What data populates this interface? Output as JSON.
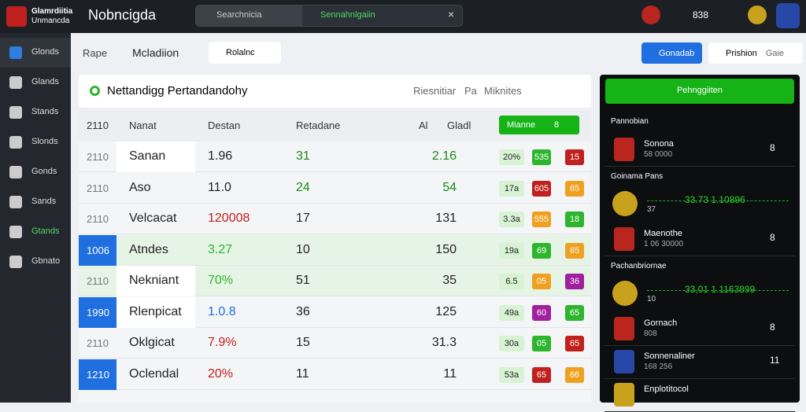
{
  "header": {
    "brand_line1": "Glamrdiitia",
    "brand_line2": "Unmancda",
    "title": "Nobncigda",
    "search": "Searchnicia",
    "search2": "Sennahnlgaiin",
    "count": "838"
  },
  "sidebar": [
    "Glonds",
    "Glands",
    "Stands",
    "Slonds",
    "Gonds",
    "Sands",
    "Gtands",
    "Gbnato"
  ],
  "toolbar": {
    "crumb1": "Rape",
    "crumb2": "Mcladiion",
    "chip": "Rolalnc",
    "button1": "Gonadab",
    "button2": "Prishion",
    "button3": "Gaie"
  },
  "panel": {
    "title": "Nettandigg Pertandandohy",
    "right1": "Riesnitiar",
    "right2": "Pa",
    "right3": "Miknites"
  },
  "table": {
    "headers": [
      "2110",
      "Nanat",
      "Destan",
      "Retadane",
      "Al",
      "Gladl"
    ],
    "action": "Mianne",
    "action_count": "8",
    "rows": [
      [
        "2110",
        "Sanan",
        "1.96",
        "31",
        "2.16",
        "20%",
        "535",
        "15"
      ],
      [
        "2110",
        "Aso",
        "11.0",
        "24",
        "54",
        "17a",
        "605",
        "65"
      ],
      [
        "2110",
        "Velcacat",
        "120008",
        "17",
        "131",
        "3.3a",
        "555",
        "18"
      ],
      [
        "1006",
        "Atndes",
        "3.27",
        "10",
        "150",
        "19a",
        "69",
        "65"
      ],
      [
        "2110",
        "Nekniant",
        "70%",
        "51",
        "35",
        "6.5",
        "05",
        "36"
      ],
      [
        "1990",
        "Rlenpicat",
        "1.0.8",
        "36",
        "125",
        "49a",
        "60",
        "65"
      ],
      [
        "2110",
        "Oklgicat",
        "7.9%",
        "15",
        "31.3",
        "30a",
        "05",
        "65"
      ],
      [
        "1210",
        "Oclendal",
        "20%",
        "11",
        "11",
        "53a",
        "65",
        "66"
      ]
    ]
  },
  "side": {
    "title": "Pehnggiiten",
    "sections": [
      {
        "heading": "Pannobian",
        "items": [
          {
            "name": "Sonona",
            "sub": "58 0000",
            "value": "8"
          }
        ]
      },
      {
        "heading": "Goinama Pans",
        "trend": "33.73 1.10896",
        "trend_sub": "37",
        "items": [
          {
            "name": "Maenothe",
            "sub": "1 06 30000",
            "value": "8"
          }
        ]
      },
      {
        "heading": "Pachanbriornae",
        "trend": "33,01 1.1163899",
        "trend_sub": "10",
        "items": [
          {
            "name": "Gornach",
            "sub": "808",
            "value": "8"
          },
          {
            "name": "Sonnenaliner",
            "sub": "168 256",
            "value": "11"
          },
          {
            "name": "Enplotitocol",
            "sub": "",
            "value": ""
          }
        ]
      }
    ]
  }
}
